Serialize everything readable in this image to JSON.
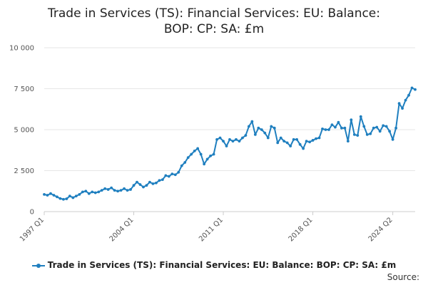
{
  "chart_data": {
    "type": "line",
    "title_lines": [
      "Trade in Services (TS): Financial Services: EU: Balance:",
      "BOP: CP: SA: £m"
    ],
    "x_start": "1997 Q1",
    "x_end": "2024 Q2",
    "x_tick_labels": [
      "1997 Q1",
      "2004 Q1",
      "2011 Q1",
      "2018 Q1",
      "2024 Q2"
    ],
    "y_tick_labels": [
      "0",
      "2 500",
      "5 000",
      "7 500",
      "10 000"
    ],
    "y_ticks": [
      0,
      2500,
      5000,
      7500,
      10000
    ],
    "ylim": [
      0,
      10000
    ],
    "grid": true,
    "legend_position": "bottom",
    "series": [
      {
        "name": "Trade in Services (TS): Financial Services: EU: Balance: BOP: CP: SA: £m",
        "color": "#1f7fbf",
        "values": [
          1050,
          1000,
          1100,
          1000,
          900,
          800,
          750,
          780,
          950,
          850,
          950,
          1050,
          1200,
          1250,
          1100,
          1200,
          1150,
          1200,
          1300,
          1400,
          1350,
          1450,
          1300,
          1250,
          1300,
          1400,
          1300,
          1350,
          1600,
          1800,
          1650,
          1500,
          1600,
          1800,
          1700,
          1750,
          1900,
          1950,
          2200,
          2150,
          2300,
          2250,
          2400,
          2800,
          3000,
          3300,
          3500,
          3700,
          3850,
          3500,
          2900,
          3200,
          3400,
          3500,
          4400,
          4500,
          4300,
          4000,
          4400,
          4300,
          4400,
          4300,
          4500,
          4650,
          5200,
          5500,
          4700,
          5100,
          5000,
          4800,
          4500,
          5200,
          5100,
          4200,
          4500,
          4300,
          4200,
          4000,
          4400,
          4400,
          4100,
          3850,
          4300,
          4250,
          4350,
          4450,
          4500,
          5050,
          5000,
          5000,
          5300,
          5150,
          5450,
          5100,
          5100,
          4300,
          5600,
          4700,
          4650,
          5800,
          5200,
          4700,
          4750,
          5100,
          5150,
          4900,
          5250,
          5200,
          4900,
          4400,
          5100,
          6600,
          6300,
          6800,
          7100,
          7550,
          7450
        ]
      }
    ]
  },
  "legend_label": "Trade in Services (TS): Financial Services: EU: Balance: BOP: CP: SA: £m",
  "source_label": "Source:"
}
